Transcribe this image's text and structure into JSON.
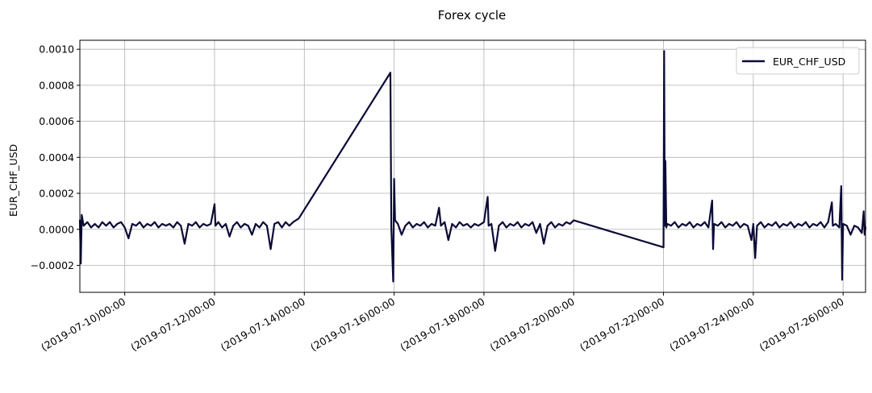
{
  "chart_data": {
    "type": "line",
    "title": "Forex cycle",
    "xlabel": "",
    "ylabel": "EUR_CHF_USD",
    "x_range": [
      "2019-07-09",
      "2019-07-26T12:00"
    ],
    "ylim": [
      -0.00035,
      0.00105
    ],
    "grid": true,
    "legend_position": "top-right",
    "line_color": "#0a0a36",
    "x_ticks": [
      {
        "date": "2019-07-10",
        "label": "(2019-07-10)00:00"
      },
      {
        "date": "2019-07-12",
        "label": "(2019-07-12)00:00"
      },
      {
        "date": "2019-07-14",
        "label": "(2019-07-14)00:00"
      },
      {
        "date": "2019-07-16",
        "label": "(2019-07-16)00:00"
      },
      {
        "date": "2019-07-18",
        "label": "(2019-07-18)00:00"
      },
      {
        "date": "2019-07-20",
        "label": "(2019-07-20)00:00"
      },
      {
        "date": "2019-07-22",
        "label": "(2019-07-22)00:00"
      },
      {
        "date": "2019-07-24",
        "label": "(2019-07-24)00:00"
      },
      {
        "date": "2019-07-26",
        "label": "(2019-07-26)00:00"
      }
    ],
    "y_ticks": [
      {
        "value": -0.0002,
        "label": "−0.0002"
      },
      {
        "value": 0.0,
        "label": "0.0000"
      },
      {
        "value": 0.0002,
        "label": "0.0002"
      },
      {
        "value": 0.0004,
        "label": "0.0004"
      },
      {
        "value": 0.0006,
        "label": "0.0006"
      },
      {
        "value": 0.0008,
        "label": "0.0008"
      },
      {
        "value": 0.001,
        "label": "0.0010"
      }
    ],
    "series": [
      {
        "name": "EUR_CHF_USD",
        "points": [
          [
            "2019-07-09T00:00",
            5e-05
          ],
          [
            "2019-07-09T00:30",
            -0.00019
          ],
          [
            "2019-07-09T01:00",
            8e-05
          ],
          [
            "2019-07-09T02:00",
            2e-05
          ],
          [
            "2019-07-09T04:00",
            4e-05
          ],
          [
            "2019-07-09T06:00",
            1e-05
          ],
          [
            "2019-07-09T08:00",
            3e-05
          ],
          [
            "2019-07-09T10:00",
            1e-05
          ],
          [
            "2019-07-09T12:00",
            4e-05
          ],
          [
            "2019-07-09T14:00",
            2e-05
          ],
          [
            "2019-07-09T16:00",
            4e-05
          ],
          [
            "2019-07-09T18:00",
            1e-05
          ],
          [
            "2019-07-09T20:00",
            3e-05
          ],
          [
            "2019-07-09T22:00",
            4e-05
          ],
          [
            "2019-07-10T00:00",
            1e-05
          ],
          [
            "2019-07-10T02:00",
            -5e-05
          ],
          [
            "2019-07-10T04:00",
            3e-05
          ],
          [
            "2019-07-10T06:00",
            2e-05
          ],
          [
            "2019-07-10T08:00",
            4e-05
          ],
          [
            "2019-07-10T10:00",
            1e-05
          ],
          [
            "2019-07-10T12:00",
            3e-05
          ],
          [
            "2019-07-10T14:00",
            2e-05
          ],
          [
            "2019-07-10T16:00",
            4e-05
          ],
          [
            "2019-07-10T18:00",
            1e-05
          ],
          [
            "2019-07-10T20:00",
            3e-05
          ],
          [
            "2019-07-10T22:00",
            2e-05
          ],
          [
            "2019-07-11T00:00",
            3e-05
          ],
          [
            "2019-07-11T02:00",
            1e-05
          ],
          [
            "2019-07-11T04:00",
            4e-05
          ],
          [
            "2019-07-11T06:00",
            2e-05
          ],
          [
            "2019-07-11T08:00",
            -8e-05
          ],
          [
            "2019-07-11T10:00",
            3e-05
          ],
          [
            "2019-07-11T12:00",
            2e-05
          ],
          [
            "2019-07-11T14:00",
            4e-05
          ],
          [
            "2019-07-11T16:00",
            1e-05
          ],
          [
            "2019-07-11T18:00",
            3e-05
          ],
          [
            "2019-07-11T20:00",
            2e-05
          ],
          [
            "2019-07-11T22:00",
            3e-05
          ],
          [
            "2019-07-12T00:00",
            0.00014
          ],
          [
            "2019-07-12T00:30",
            2e-05
          ],
          [
            "2019-07-12T02:00",
            4e-05
          ],
          [
            "2019-07-12T04:00",
            1e-05
          ],
          [
            "2019-07-12T06:00",
            3e-05
          ],
          [
            "2019-07-12T08:00",
            -4e-05
          ],
          [
            "2019-07-12T10:00",
            2e-05
          ],
          [
            "2019-07-12T12:00",
            4e-05
          ],
          [
            "2019-07-12T14:00",
            1e-05
          ],
          [
            "2019-07-12T16:00",
            3e-05
          ],
          [
            "2019-07-12T18:00",
            2e-05
          ],
          [
            "2019-07-12T20:00",
            -3e-05
          ],
          [
            "2019-07-12T22:00",
            3e-05
          ],
          [
            "2019-07-13T00:00",
            1e-05
          ],
          [
            "2019-07-13T02:00",
            4e-05
          ],
          [
            "2019-07-13T04:00",
            2e-05
          ],
          [
            "2019-07-13T06:00",
            -0.00011
          ],
          [
            "2019-07-13T08:00",
            3e-05
          ],
          [
            "2019-07-13T10:00",
            4e-05
          ],
          [
            "2019-07-13T12:00",
            1e-05
          ],
          [
            "2019-07-13T14:00",
            4e-05
          ],
          [
            "2019-07-13T16:00",
            2e-05
          ],
          [
            "2019-07-13T18:00",
            4e-05
          ],
          [
            "2019-07-13T21:00",
            6e-05
          ],
          [
            "2019-07-15T22:00",
            0.00087
          ],
          [
            "2019-07-15T22:30",
            1e-05
          ],
          [
            "2019-07-15T23:30",
            -0.00029
          ],
          [
            "2019-07-16T00:00",
            0.00028
          ],
          [
            "2019-07-16T00:30",
            5e-05
          ],
          [
            "2019-07-16T02:00",
            3e-05
          ],
          [
            "2019-07-16T04:00",
            -3e-05
          ],
          [
            "2019-07-16T06:00",
            2e-05
          ],
          [
            "2019-07-16T08:00",
            4e-05
          ],
          [
            "2019-07-16T10:00",
            1e-05
          ],
          [
            "2019-07-16T12:00",
            3e-05
          ],
          [
            "2019-07-16T14:00",
            2e-05
          ],
          [
            "2019-07-16T16:00",
            4e-05
          ],
          [
            "2019-07-16T18:00",
            1e-05
          ],
          [
            "2019-07-16T20:00",
            3e-05
          ],
          [
            "2019-07-16T22:00",
            2e-05
          ],
          [
            "2019-07-17T00:00",
            0.00012
          ],
          [
            "2019-07-17T01:00",
            2e-05
          ],
          [
            "2019-07-17T03:00",
            4e-05
          ],
          [
            "2019-07-17T05:00",
            -6e-05
          ],
          [
            "2019-07-17T07:00",
            3e-05
          ],
          [
            "2019-07-17T09:00",
            1e-05
          ],
          [
            "2019-07-17T11:00",
            4e-05
          ],
          [
            "2019-07-17T13:00",
            2e-05
          ],
          [
            "2019-07-17T15:00",
            3e-05
          ],
          [
            "2019-07-17T17:00",
            1e-05
          ],
          [
            "2019-07-17T19:00",
            3e-05
          ],
          [
            "2019-07-17T21:00",
            2e-05
          ],
          [
            "2019-07-18T00:00",
            4e-05
          ],
          [
            "2019-07-18T02:00",
            0.00018
          ],
          [
            "2019-07-18T02:30",
            2e-05
          ],
          [
            "2019-07-18T04:00",
            3e-05
          ],
          [
            "2019-07-18T06:00",
            -0.00012
          ],
          [
            "2019-07-18T08:00",
            2e-05
          ],
          [
            "2019-07-18T10:00",
            4e-05
          ],
          [
            "2019-07-18T12:00",
            1e-05
          ],
          [
            "2019-07-18T14:00",
            3e-05
          ],
          [
            "2019-07-18T16:00",
            2e-05
          ],
          [
            "2019-07-18T18:00",
            4e-05
          ],
          [
            "2019-07-18T20:00",
            1e-05
          ],
          [
            "2019-07-18T22:00",
            3e-05
          ],
          [
            "2019-07-19T00:00",
            2e-05
          ],
          [
            "2019-07-19T02:00",
            4e-05
          ],
          [
            "2019-07-19T04:00",
            -2e-05
          ],
          [
            "2019-07-19T06:00",
            3e-05
          ],
          [
            "2019-07-19T08:00",
            -8e-05
          ],
          [
            "2019-07-19T10:00",
            2e-05
          ],
          [
            "2019-07-19T12:00",
            4e-05
          ],
          [
            "2019-07-19T14:00",
            1e-05
          ],
          [
            "2019-07-19T16:00",
            3e-05
          ],
          [
            "2019-07-19T18:00",
            2e-05
          ],
          [
            "2019-07-19T20:00",
            4e-05
          ],
          [
            "2019-07-19T22:00",
            3e-05
          ],
          [
            "2019-07-20T00:00",
            5e-05
          ],
          [
            "2019-07-22T00:00",
            -0.0001
          ],
          [
            "2019-07-22T00:20",
            0.00099
          ],
          [
            "2019-07-22T00:40",
            2e-05
          ],
          [
            "2019-07-22T01:00",
            0.00038
          ],
          [
            "2019-07-22T01:30",
            1e-05
          ],
          [
            "2019-07-22T02:00",
            3e-05
          ],
          [
            "2019-07-22T04:00",
            2e-05
          ],
          [
            "2019-07-22T06:00",
            4e-05
          ],
          [
            "2019-07-22T08:00",
            1e-05
          ],
          [
            "2019-07-22T10:00",
            3e-05
          ],
          [
            "2019-07-22T12:00",
            2e-05
          ],
          [
            "2019-07-22T14:00",
            4e-05
          ],
          [
            "2019-07-22T16:00",
            1e-05
          ],
          [
            "2019-07-22T18:00",
            3e-05
          ],
          [
            "2019-07-22T20:00",
            2e-05
          ],
          [
            "2019-07-22T22:00",
            4e-05
          ],
          [
            "2019-07-23T00:00",
            1e-05
          ],
          [
            "2019-07-23T02:00",
            0.00016
          ],
          [
            "2019-07-23T02:30",
            -0.00011
          ],
          [
            "2019-07-23T03:00",
            3e-05
          ],
          [
            "2019-07-23T05:00",
            2e-05
          ],
          [
            "2019-07-23T07:00",
            4e-05
          ],
          [
            "2019-07-23T09:00",
            1e-05
          ],
          [
            "2019-07-23T11:00",
            3e-05
          ],
          [
            "2019-07-23T13:00",
            2e-05
          ],
          [
            "2019-07-23T15:00",
            4e-05
          ],
          [
            "2019-07-23T17:00",
            1e-05
          ],
          [
            "2019-07-23T19:00",
            3e-05
          ],
          [
            "2019-07-23T21:00",
            2e-05
          ],
          [
            "2019-07-23T23:00",
            -6e-05
          ],
          [
            "2019-07-24T00:00",
            3e-05
          ],
          [
            "2019-07-24T01:00",
            -0.00016
          ],
          [
            "2019-07-24T02:00",
            2e-05
          ],
          [
            "2019-07-24T04:00",
            4e-05
          ],
          [
            "2019-07-24T06:00",
            1e-05
          ],
          [
            "2019-07-24T08:00",
            3e-05
          ],
          [
            "2019-07-24T10:00",
            2e-05
          ],
          [
            "2019-07-24T12:00",
            4e-05
          ],
          [
            "2019-07-24T14:00",
            1e-05
          ],
          [
            "2019-07-24T16:00",
            3e-05
          ],
          [
            "2019-07-24T18:00",
            2e-05
          ],
          [
            "2019-07-24T20:00",
            4e-05
          ],
          [
            "2019-07-24T22:00",
            1e-05
          ],
          [
            "2019-07-25T00:00",
            3e-05
          ],
          [
            "2019-07-25T02:00",
            2e-05
          ],
          [
            "2019-07-25T04:00",
            4e-05
          ],
          [
            "2019-07-25T06:00",
            1e-05
          ],
          [
            "2019-07-25T08:00",
            3e-05
          ],
          [
            "2019-07-25T10:00",
            2e-05
          ],
          [
            "2019-07-25T12:00",
            4e-05
          ],
          [
            "2019-07-25T14:00",
            1e-05
          ],
          [
            "2019-07-25T16:00",
            4e-05
          ],
          [
            "2019-07-25T18:00",
            0.00015
          ],
          [
            "2019-07-25T18:30",
            2e-05
          ],
          [
            "2019-07-25T20:00",
            3e-05
          ],
          [
            "2019-07-25T22:00",
            1e-05
          ],
          [
            "2019-07-25T23:00",
            0.00024
          ],
          [
            "2019-07-25T23:30",
            -0.00028
          ],
          [
            "2019-07-26T00:00",
            3e-05
          ],
          [
            "2019-07-26T02:00",
            2e-05
          ],
          [
            "2019-07-26T04:00",
            -3e-05
          ],
          [
            "2019-07-26T06:00",
            2e-05
          ],
          [
            "2019-07-26T08:00",
            1e-05
          ],
          [
            "2019-07-26T10:00",
            -2e-05
          ],
          [
            "2019-07-26T11:00",
            0.0001
          ],
          [
            "2019-07-26T11:30",
            -3e-05
          ],
          [
            "2019-07-26T12:00",
            1e-05
          ]
        ]
      }
    ]
  }
}
